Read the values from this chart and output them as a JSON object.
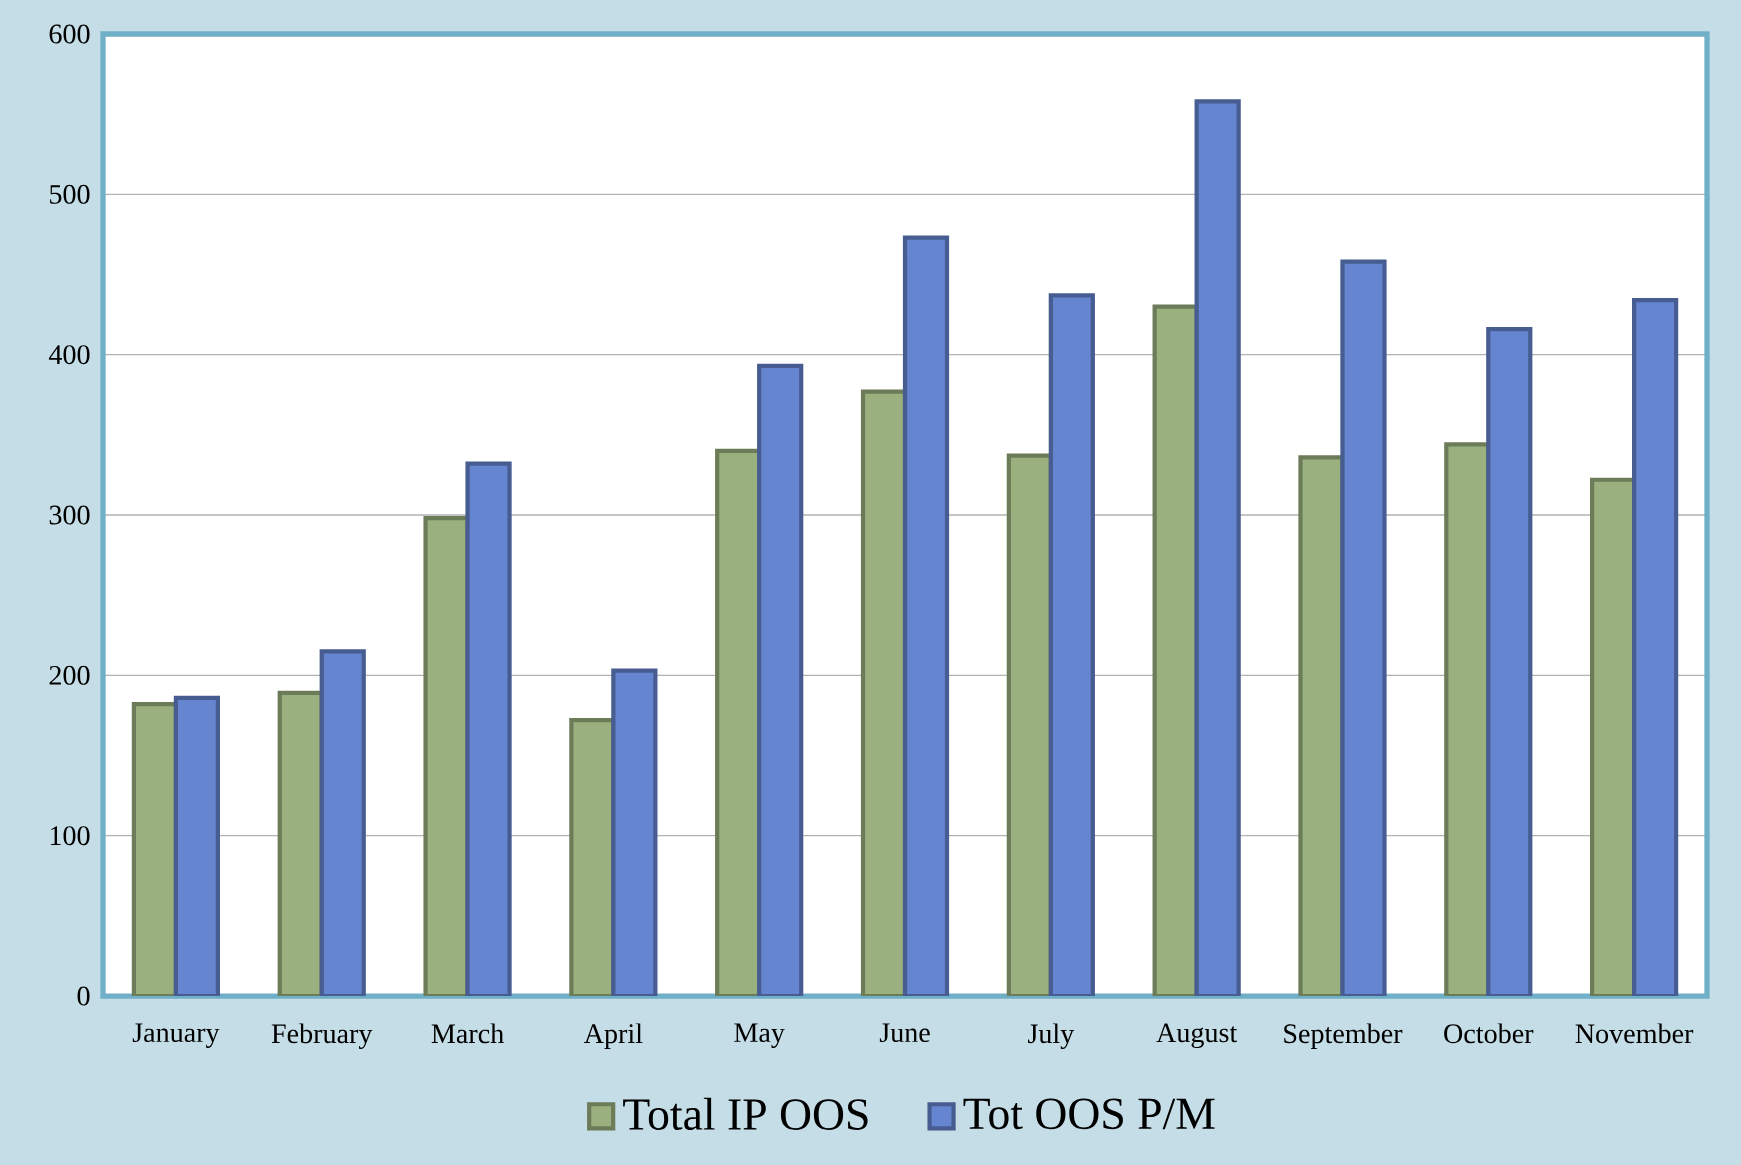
{
  "chart_data": {
    "type": "bar",
    "categories": [
      "January",
      "February",
      "March",
      "April",
      "May",
      "June",
      "July",
      "August",
      "September",
      "October",
      "November"
    ],
    "series": [
      {
        "name": "Total IP OOS",
        "color": "#9bb07f",
        "values": [
          182,
          189,
          298,
          172,
          340,
          377,
          337,
          430,
          336,
          344,
          322
        ]
      },
      {
        "name": "Tot OOS P/M",
        "color": "#6685d0",
        "values": [
          186,
          215,
          332,
          203,
          393,
          473,
          437,
          558,
          458,
          416,
          434
        ]
      }
    ],
    "ylim": [
      0,
      600
    ],
    "yticks": [
      0,
      100,
      200,
      300,
      400,
      500,
      600
    ],
    "grid": "y",
    "legend": "bottom"
  }
}
